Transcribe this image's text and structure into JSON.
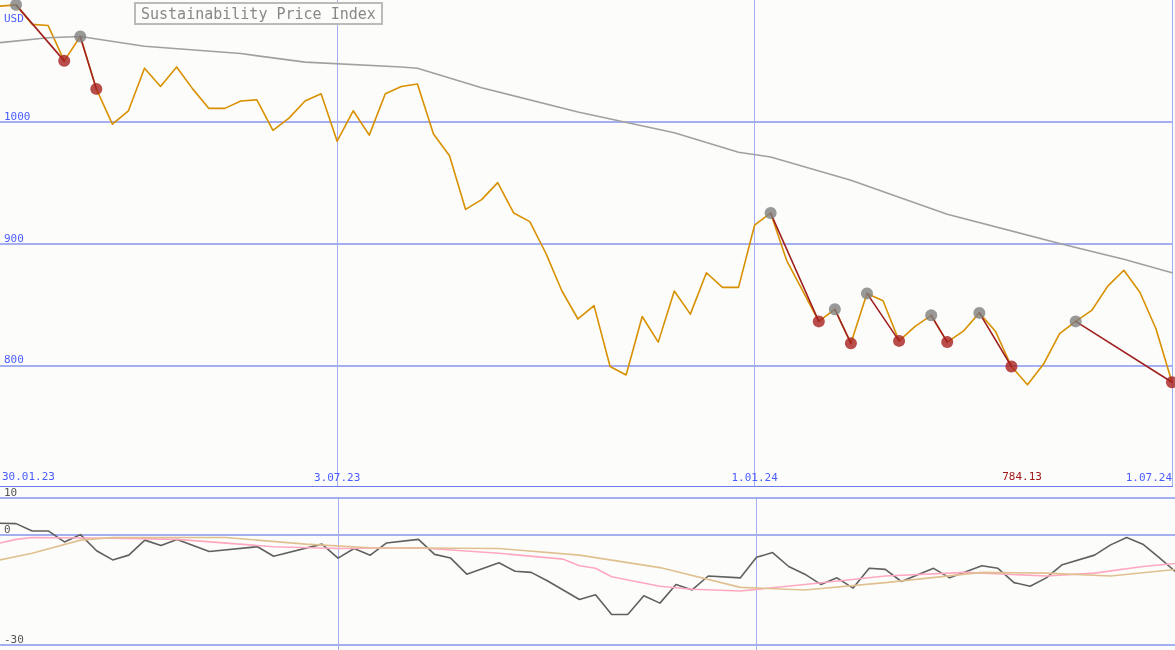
{
  "chart_data": [
    {
      "type": "line",
      "title": "Sustainability Price Index",
      "ylabel": "USD",
      "grid": true,
      "marker": "none",
      "xlim": [
        "2023-02-06",
        "2024-07-01"
      ],
      "xticks": [
        {
          "value": "2023-07-03",
          "label": "3.07.23"
        },
        {
          "value": "2024-01-01",
          "label": "1.01.24"
        },
        {
          "value": "2024-07-01",
          "label": "1.07.24"
        }
      ],
      "ylim": [
        700,
        1100
      ],
      "yticks": [
        800,
        900,
        1000
      ],
      "annotations": [
        "30.01.23",
        "784.13"
      ],
      "x": [
        "2023-02-06",
        "2023-02-13",
        "2023-02-20",
        "2023-02-27",
        "2023-03-06",
        "2023-03-13",
        "2023-03-20",
        "2023-03-27",
        "2023-04-03",
        "2023-04-10",
        "2023-04-17",
        "2023-04-24",
        "2023-05-01",
        "2023-05-08",
        "2023-05-15",
        "2023-05-22",
        "2023-05-29",
        "2023-06-05",
        "2023-06-12",
        "2023-06-19",
        "2023-06-26",
        "2023-07-03",
        "2023-07-10",
        "2023-07-17",
        "2023-07-24",
        "2023-07-31",
        "2023-08-07",
        "2023-08-14",
        "2023-08-21",
        "2023-08-28",
        "2023-09-04",
        "2023-09-11",
        "2023-09-18",
        "2023-09-25",
        "2023-10-02",
        "2023-10-09",
        "2023-10-16",
        "2023-10-23",
        "2023-10-30",
        "2023-11-06",
        "2023-11-13",
        "2023-11-20",
        "2023-11-27",
        "2023-12-04",
        "2023-12-11",
        "2023-12-18",
        "2023-12-25",
        "2024-01-01",
        "2024-01-08",
        "2024-01-15",
        "2024-01-22",
        "2024-01-29",
        "2024-02-05",
        "2024-02-12",
        "2024-02-19",
        "2024-02-26",
        "2024-03-04",
        "2024-03-11",
        "2024-03-18",
        "2024-03-25",
        "2024-04-01",
        "2024-04-08",
        "2024-04-15",
        "2024-04-22",
        "2024-04-29",
        "2024-05-06",
        "2024-05-13",
        "2024-05-20",
        "2024-05-27",
        "2024-06-03",
        "2024-06-10",
        "2024-06-17",
        "2024-06-24",
        "2024-07-01"
      ],
      "series": [
        {
          "color": "#d89000",
          "values": [
            1095,
            1096,
            1080,
            1079,
            1050,
            1070,
            1027,
            998,
            1009,
            1044,
            1029,
            1045,
            1027,
            1011,
            1011,
            1017,
            1018,
            993,
            1003,
            1017,
            1023,
            984,
            1009,
            989,
            1023,
            1029,
            1031,
            990,
            972,
            928,
            936,
            950,
            925,
            918,
            892,
            861,
            838,
            849,
            799,
            792,
            840,
            819,
            861,
            842,
            876,
            864,
            864,
            915,
            925,
            886,
            861,
            836,
            846,
            818,
            859,
            853,
            820,
            832,
            841,
            819,
            828,
            843,
            828,
            799,
            784,
            801,
            826,
            836,
            845,
            865,
            878,
            860,
            830,
            786
          ]
        },
        {
          "color": "#a0a0a0",
          "x": [
            "2023-02-06",
            "2023-02-27",
            "2023-03-13",
            "2023-04-10",
            "2023-05-22",
            "2023-06-19",
            "2023-07-31",
            "2023-08-07",
            "2023-09-04",
            "2023-10-16",
            "2023-11-27",
            "2023-12-25",
            "2024-01-08",
            "2024-02-12",
            "2024-03-25",
            "2024-05-13",
            "2024-06-10",
            "2024-07-01"
          ],
          "values": [
            1065,
            1069,
            1070,
            1062,
            1056,
            1049,
            1045,
            1044,
            1028,
            1008,
            991,
            975,
            971,
            952,
            924,
            900,
            887,
            876
          ]
        },
        {
          "color": "#a02020",
          "x": [
            "2023-02-13",
            "2023-03-06"
          ],
          "values": [
            1096,
            1050
          ]
        },
        {
          "color": "#a02020",
          "x": [
            "2023-03-13",
            "2023-03-20"
          ],
          "values": [
            1070,
            1027
          ]
        },
        {
          "color": "#a02020",
          "x": [
            "2024-01-08",
            "2024-01-29"
          ],
          "values": [
            925,
            836
          ]
        },
        {
          "color": "#a02020",
          "x": [
            "2024-02-05",
            "2024-02-12"
          ],
          "values": [
            846,
            818
          ]
        },
        {
          "color": "#a02020",
          "x": [
            "2024-02-19",
            "2024-03-04"
          ],
          "values": [
            859,
            820
          ]
        },
        {
          "color": "#a02020",
          "x": [
            "2024-03-18",
            "2024-03-25"
          ],
          "values": [
            841,
            819
          ]
        },
        {
          "color": "#a02020",
          "x": [
            "2024-04-08",
            "2024-04-22"
          ],
          "values": [
            843,
            799
          ]
        },
        {
          "color": "#a02020",
          "x": [
            "2024-05-20",
            "2024-07-01"
          ],
          "values": [
            836,
            786
          ]
        },
        {
          "type": "scatter",
          "marker": "circle",
          "color": "#808080",
          "x": [
            "2023-02-13",
            "2023-03-13",
            "2024-01-08",
            "2024-02-05",
            "2024-02-19",
            "2024-03-18",
            "2024-04-08",
            "2024-05-20"
          ],
          "values": [
            1096,
            1070,
            925,
            846,
            859,
            841,
            843,
            836
          ]
        },
        {
          "type": "scatter",
          "marker": "circle",
          "color": "#a82020",
          "x": [
            "2023-03-06",
            "2023-03-20",
            "2024-01-29",
            "2024-02-12",
            "2024-03-04",
            "2024-03-25",
            "2024-04-22",
            "2024-07-01"
          ],
          "values": [
            1050,
            1027,
            836,
            818,
            820,
            819,
            799,
            786
          ]
        }
      ]
    },
    {
      "type": "line",
      "grid": true,
      "marker": "none",
      "tick_labels": "y",
      "xlim": [
        "2023-02-06",
        "2024-07-01"
      ],
      "xticks": [
        {
          "value": "2023-07-03",
          "label": null
        },
        {
          "value": "2024-01-01",
          "label": null
        }
      ],
      "ylim": [
        -31.5,
        10
      ],
      "yticks": [
        -30,
        0,
        10
      ],
      "series": [
        {
          "color": "#606060",
          "x": [
            "2023-02-06",
            "2023-02-13",
            "2023-02-20",
            "2023-02-27",
            "2023-03-06",
            "2023-03-13",
            "2023-03-20",
            "2023-03-27",
            "2023-04-03",
            "2023-04-10",
            "2023-04-17",
            "2023-04-24",
            "2023-05-08",
            "2023-05-29",
            "2023-06-05",
            "2023-06-26",
            "2023-07-03",
            "2023-07-10",
            "2023-07-17",
            "2023-07-24",
            "2023-08-07",
            "2023-08-14",
            "2023-08-21",
            "2023-08-28",
            "2023-09-11",
            "2023-09-18",
            "2023-09-25",
            "2023-10-02",
            "2023-10-16",
            "2023-10-23",
            "2023-10-30",
            "2023-11-06",
            "2023-11-13",
            "2023-11-20",
            "2023-11-27",
            "2023-12-04",
            "2023-12-11",
            "2023-12-25",
            "2024-01-01",
            "2024-01-08",
            "2024-01-15",
            "2024-01-22",
            "2024-01-29",
            "2024-02-05",
            "2024-02-12",
            "2024-02-19",
            "2024-02-26",
            "2024-03-04",
            "2024-03-18",
            "2024-03-25",
            "2024-04-08",
            "2024-04-15",
            "2024-04-22",
            "2024-04-29",
            "2024-05-06",
            "2024-05-13",
            "2024-05-27",
            "2024-06-03",
            "2024-06-10",
            "2024-06-17",
            "2024-06-24",
            "2024-07-01"
          ],
          "values": [
            3.1,
            3,
            1,
            1,
            -2,
            0,
            -4.4,
            -6.9,
            -5.6,
            -1.5,
            -3,
            -1.3,
            -4.6,
            -3.3,
            -5.9,
            -2.6,
            -6.4,
            -3.8,
            -5.6,
            -2.3,
            -1.3,
            -5.4,
            -6.4,
            -10.8,
            -7.7,
            -10,
            -10.3,
            -12.6,
            -17.7,
            -16.4,
            -21.8,
            -21.8,
            -16.7,
            -18.7,
            -13.6,
            -15.1,
            -11.3,
            -11.8,
            -6.2,
            -4.9,
            -8.7,
            -10.8,
            -13.6,
            -11.8,
            -14.6,
            -9.2,
            -9.5,
            -12.8,
            -9.2,
            -11.8,
            -8.5,
            -9.2,
            -13.1,
            -14.1,
            -11.8,
            -8.2,
            -5.6,
            -2.8,
            -0.8,
            -2.6,
            -6.2,
            -10
          ]
        },
        {
          "color": "#ffa8c0",
          "x": [
            "2023-02-06",
            "2023-02-13",
            "2023-02-20",
            "2023-03-27",
            "2023-04-24",
            "2023-06-05",
            "2023-07-03",
            "2023-08-07",
            "2023-09-11",
            "2023-10-09",
            "2023-10-16",
            "2023-10-23",
            "2023-10-30",
            "2023-11-20",
            "2023-12-04",
            "2023-12-25",
            "2024-01-22",
            "2024-02-26",
            "2024-04-01",
            "2024-05-06",
            "2024-05-27",
            "2024-06-17",
            "2024-07-01"
          ],
          "values": [
            -2.3,
            -1.3,
            -0.8,
            -1,
            -1.3,
            -3.3,
            -3.8,
            -3.6,
            -5.1,
            -6.7,
            -8.5,
            -9.2,
            -11.5,
            -14.1,
            -14.9,
            -15.4,
            -13.6,
            -11.3,
            -10.3,
            -11.3,
            -10.5,
            -8.7,
            -7.9
          ]
        },
        {
          "color": "#e0c090",
          "x": [
            "2023-02-06",
            "2023-02-20",
            "2023-03-13",
            "2023-03-27",
            "2023-05-15",
            "2023-06-19",
            "2023-07-17",
            "2023-09-11",
            "2023-10-16",
            "2023-11-20",
            "2023-12-25",
            "2024-01-22",
            "2024-02-26",
            "2024-04-08",
            "2024-05-06",
            "2024-06-03",
            "2024-07-01"
          ],
          "values": [
            -6.9,
            -5.1,
            -1.5,
            -0.8,
            -0.8,
            -2.6,
            -3.6,
            -3.8,
            -5.6,
            -9,
            -14.4,
            -15.1,
            -13.1,
            -10.3,
            -10.5,
            -11.3,
            -9.5
          ]
        }
      ]
    }
  ]
}
